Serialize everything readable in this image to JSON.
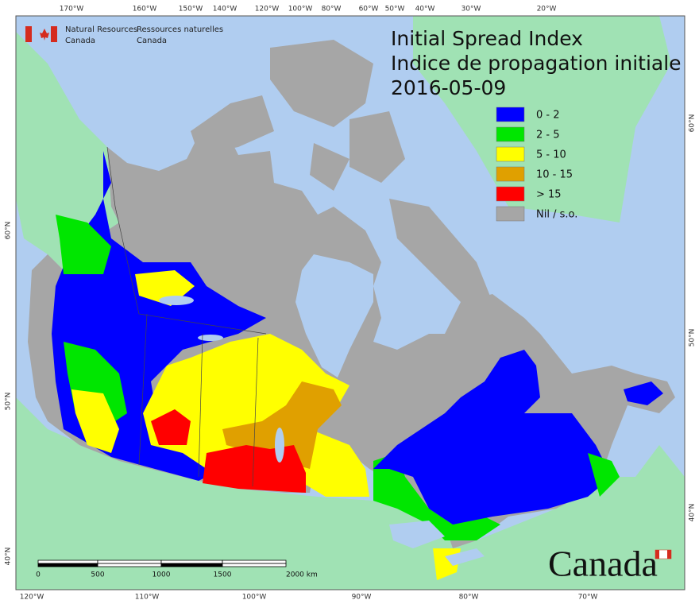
{
  "agency": {
    "en": [
      "Natural Resources",
      "Canada"
    ],
    "fr": [
      "Ressources naturelles",
      "Canada"
    ]
  },
  "title": "Initial Spread Index",
  "subtitle": "Indice de propagation initiale",
  "date": "2016-05-09",
  "legend": [
    {
      "label": "0 - 2",
      "color": "#0000ff"
    },
    {
      "label": "2 - 5",
      "color": "#00e600"
    },
    {
      "label": "5 - 10",
      "color": "#ffff00"
    },
    {
      "label": "10 - 15",
      "color": "#e0a000"
    },
    {
      "label": "> 15",
      "color": "#ff0000"
    },
    {
      "label": "Nil / s.o.",
      "color": "#a6a6a6"
    }
  ],
  "graticule": {
    "top": [
      "170°W",
      "160°W",
      "150°W",
      "140°W",
      "120°W",
      "100°W",
      "80°W",
      "60°W",
      "50°W",
      "40°W",
      "30°W",
      "20°W"
    ],
    "bottom": [
      "120°W",
      "110°W",
      "100°W",
      "90°W",
      "80°W",
      "70°W"
    ],
    "left": [
      "60°N",
      "50°N",
      "40°N"
    ],
    "right": [
      "60°N",
      "50°N",
      "40°N"
    ]
  },
  "scale_bar": {
    "labels": [
      "0",
      "500",
      "1000",
      "1500",
      "2000 km"
    ]
  },
  "wordmark": "Canada"
}
